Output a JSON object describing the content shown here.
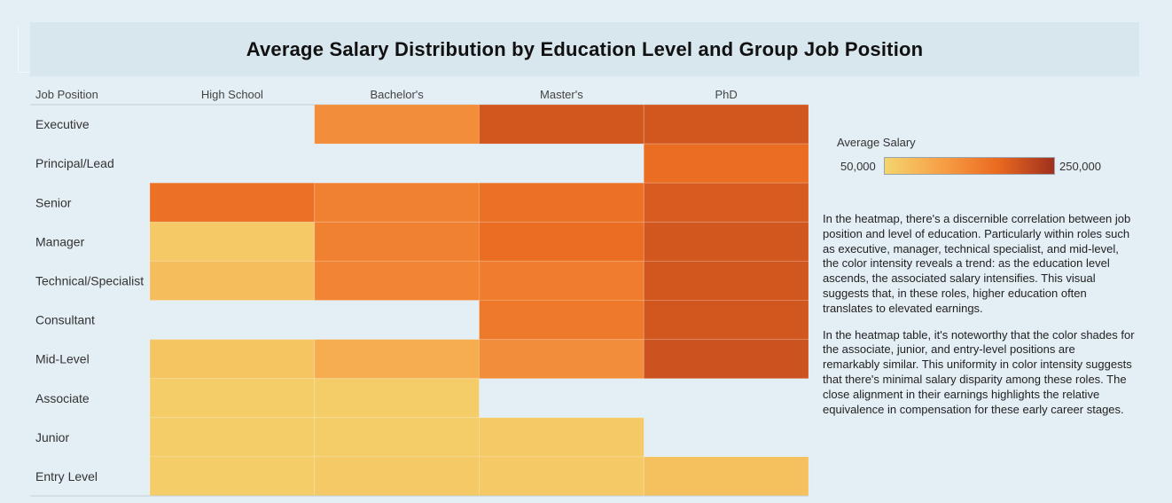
{
  "chart_data": {
    "type": "heatmap",
    "title": "Average Salary Distribution by Education Level and Group Job Position",
    "row_header": "Job Position",
    "columns": [
      "High School",
      "Bachelor's",
      "Master's",
      "PhD"
    ],
    "rows": [
      "Executive",
      "Principal/Lead",
      "Senior",
      "Manager",
      "Technical/Specialist",
      "Consultant",
      "Mid-Level",
      "Associate",
      "Junior",
      "Entry Level"
    ],
    "values": [
      [
        null,
        140000,
        205000,
        205000
      ],
      [
        null,
        null,
        null,
        180000
      ],
      [
        175000,
        155000,
        175000,
        200000
      ],
      [
        65000,
        155000,
        180000,
        205000
      ],
      [
        80000,
        150000,
        160000,
        205000
      ],
      [
        null,
        null,
        165000,
        205000
      ],
      [
        70000,
        100000,
        140000,
        210000
      ],
      [
        60000,
        60000,
        null,
        null
      ],
      [
        60000,
        60000,
        65000,
        null
      ],
      [
        60000,
        65000,
        65000,
        75000
      ]
    ],
    "color_scale": {
      "title": "Average Salary",
      "min": 50000,
      "max": 250000,
      "min_label": "50,000",
      "max_label": "250,000",
      "colors": [
        "#f4d56e",
        "#f7a046",
        "#ea6a20",
        "#a0301e"
      ]
    },
    "grid": false,
    "legend_position": "right"
  },
  "notes": [
    "In the heatmap, there's a discernible correlation between job position and level of education. Particularly within roles such as executive, manager, technical specialist, and mid-level, the color intensity reveals a trend: as the education level ascends, the associated salary intensifies. This visual suggests that, in these roles, higher education often translates to elevated earnings.",
    "In the heatmap table, it's noteworthy that the color shades for the associate, junior, and entry-level positions are remarkably similar. This uniformity in color intensity suggests that there's minimal salary disparity among these roles. The close alignment in their earnings highlights the relative equivalence in compensation for these early career stages."
  ]
}
